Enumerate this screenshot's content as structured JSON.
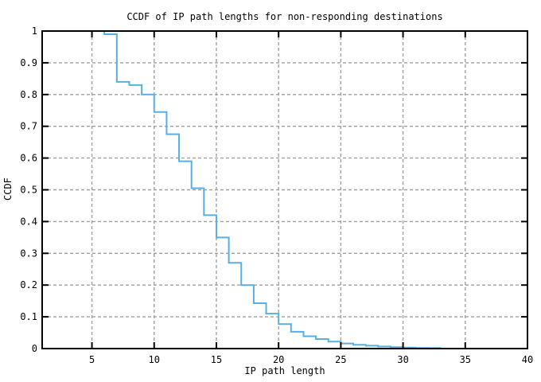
{
  "chart_data": {
    "type": "line",
    "subtype": "step-ccdf",
    "title": "CCDF of IP path lengths for non-responding destinations",
    "xlabel": "IP path length",
    "ylabel": "CCDF",
    "xlim": [
      1,
      40
    ],
    "ylim": [
      0,
      1
    ],
    "x_ticks": [
      5,
      10,
      15,
      20,
      25,
      30,
      35,
      40
    ],
    "x_tick_labels": [
      "5",
      "10",
      "15",
      "20",
      "25",
      "30",
      "35",
      "40"
    ],
    "y_ticks": [
      0,
      0.1,
      0.2,
      0.3,
      0.4,
      0.5,
      0.6,
      0.7,
      0.8,
      0.9,
      1
    ],
    "y_tick_labels": [
      "0",
      "0.1",
      "0.2",
      "0.3",
      "0.4",
      "0.5",
      "0.6",
      "0.7",
      "0.8",
      "0.9",
      "1"
    ],
    "grid": true,
    "legend_position": "none",
    "colors": {
      "line": "#56B0E4",
      "grid": "#A0A0A0",
      "frame": "#000000",
      "background": "#FFFFFF"
    },
    "steps_note": "each pair is [ip-path-length x, CCDF level starting at x]",
    "steps": [
      [
        1,
        1.0
      ],
      [
        6,
        0.99
      ],
      [
        7,
        0.84
      ],
      [
        8,
        0.83
      ],
      [
        9,
        0.8
      ],
      [
        10,
        0.745
      ],
      [
        11,
        0.675
      ],
      [
        12,
        0.59
      ],
      [
        13,
        0.505
      ],
      [
        14,
        0.42
      ],
      [
        15,
        0.35
      ],
      [
        16,
        0.27
      ],
      [
        17,
        0.2
      ],
      [
        18,
        0.143
      ],
      [
        19,
        0.11
      ],
      [
        20,
        0.077
      ],
      [
        21,
        0.053
      ],
      [
        22,
        0.039
      ],
      [
        23,
        0.03
      ],
      [
        24,
        0.022
      ],
      [
        25,
        0.016
      ],
      [
        26,
        0.012
      ],
      [
        27,
        0.009
      ],
      [
        28,
        0.0065
      ],
      [
        29,
        0.0045
      ],
      [
        30,
        0.003
      ],
      [
        31,
        0.002
      ],
      [
        32,
        0.0015
      ],
      [
        33,
        0.0
      ]
    ]
  }
}
